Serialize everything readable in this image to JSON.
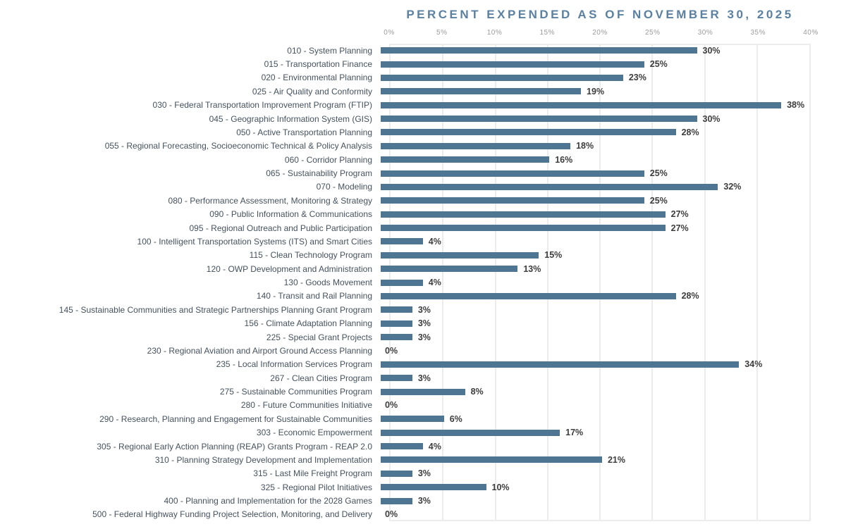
{
  "chart_data": {
    "type": "bar",
    "orientation": "horizontal",
    "title": "PERCENT EXPENDED AS OF NOVEMBER 30, 2025",
    "xlabel": "",
    "ylabel": "",
    "xlim": [
      0,
      40
    ],
    "x_ticks": [
      "0%",
      "5%",
      "10%",
      "15%",
      "20%",
      "25%",
      "30%",
      "35%",
      "40%"
    ],
    "x_tick_values": [
      0,
      5,
      10,
      15,
      20,
      25,
      30,
      35,
      40
    ],
    "grid": true,
    "legend": "none",
    "categories": [
      "010 - System Planning",
      "015 - Transportation Finance",
      "020 - Environmental Planning",
      "025 - Air Quality and Conformity",
      "030 - Federal Transportation Improvement Program (FTIP)",
      "045 - Geographic Information System (GIS)",
      "050 - Active Transportation Planning",
      "055 - Regional Forecasting, Socioeconomic Technical & Policy Analysis",
      "060 - Corridor Planning",
      "065 - Sustainability Program",
      "070 - Modeling",
      "080 - Performance Assessment, Monitoring & Strategy",
      "090 - Public Information & Communications",
      "095 - Regional Outreach and Public Participation",
      "100 - Intelligent Transportation Systems (ITS) and Smart Cities",
      "115 - Clean Technology Program",
      "120 - OWP Development and Administration",
      "130 - Goods Movement",
      "140 - Transit and Rail Planning",
      "145 - Sustainable Communities and Strategic Partnerships Planning Grant Program",
      "156 - Climate Adaptation Planning",
      "225 - Special Grant Projects",
      "230 - Regional Aviation and Airport Ground Access Planning",
      "235 - Local Information Services Program",
      "267 - Clean Cities Program",
      "275 - Sustainable Communities Program",
      "280 - Future Communities Initiative",
      "290 - Research, Planning and Engagement for Sustainable Communities",
      "303 - Economic Empowerment",
      "305 - Regional Early Action Planning (REAP) Grants Program - REAP 2.0",
      "310 - Planning Strategy Development and Implementation",
      "315 - Last Mile Freight Program",
      "325 - Regional Pilot Initiatives",
      "400 - Planning and Implementation for the 2028 Games",
      "500 - Federal Highway Funding Project Selection, Monitoring, and Delivery"
    ],
    "values": [
      30,
      25,
      23,
      19,
      38,
      30,
      28,
      18,
      16,
      25,
      32,
      25,
      27,
      27,
      4,
      15,
      13,
      4,
      28,
      3,
      3,
      3,
      0,
      34,
      3,
      8,
      0,
      6,
      17,
      4,
      21,
      3,
      10,
      3,
      0
    ],
    "value_labels": [
      "30%",
      "25%",
      "23%",
      "19%",
      "38%",
      "30%",
      "28%",
      "18%",
      "16%",
      "25%",
      "32%",
      "25%",
      "27%",
      "27%",
      "4%",
      "15%",
      "13%",
      "4%",
      "28%",
      "3%",
      "3%",
      "3%",
      "0%",
      "34%",
      "3%",
      "8%",
      "0%",
      "6%",
      "17%",
      "4%",
      "21%",
      "3%",
      "10%",
      "3%",
      "0%"
    ]
  },
  "colors": {
    "title": "#5b81a2",
    "bar": "#4e7591",
    "category_label": "#45525f",
    "value_label": "#3d3d3d",
    "tick_label": "#9b9b9b",
    "gridline": "#ececec",
    "plot_border": "#ececec"
  }
}
